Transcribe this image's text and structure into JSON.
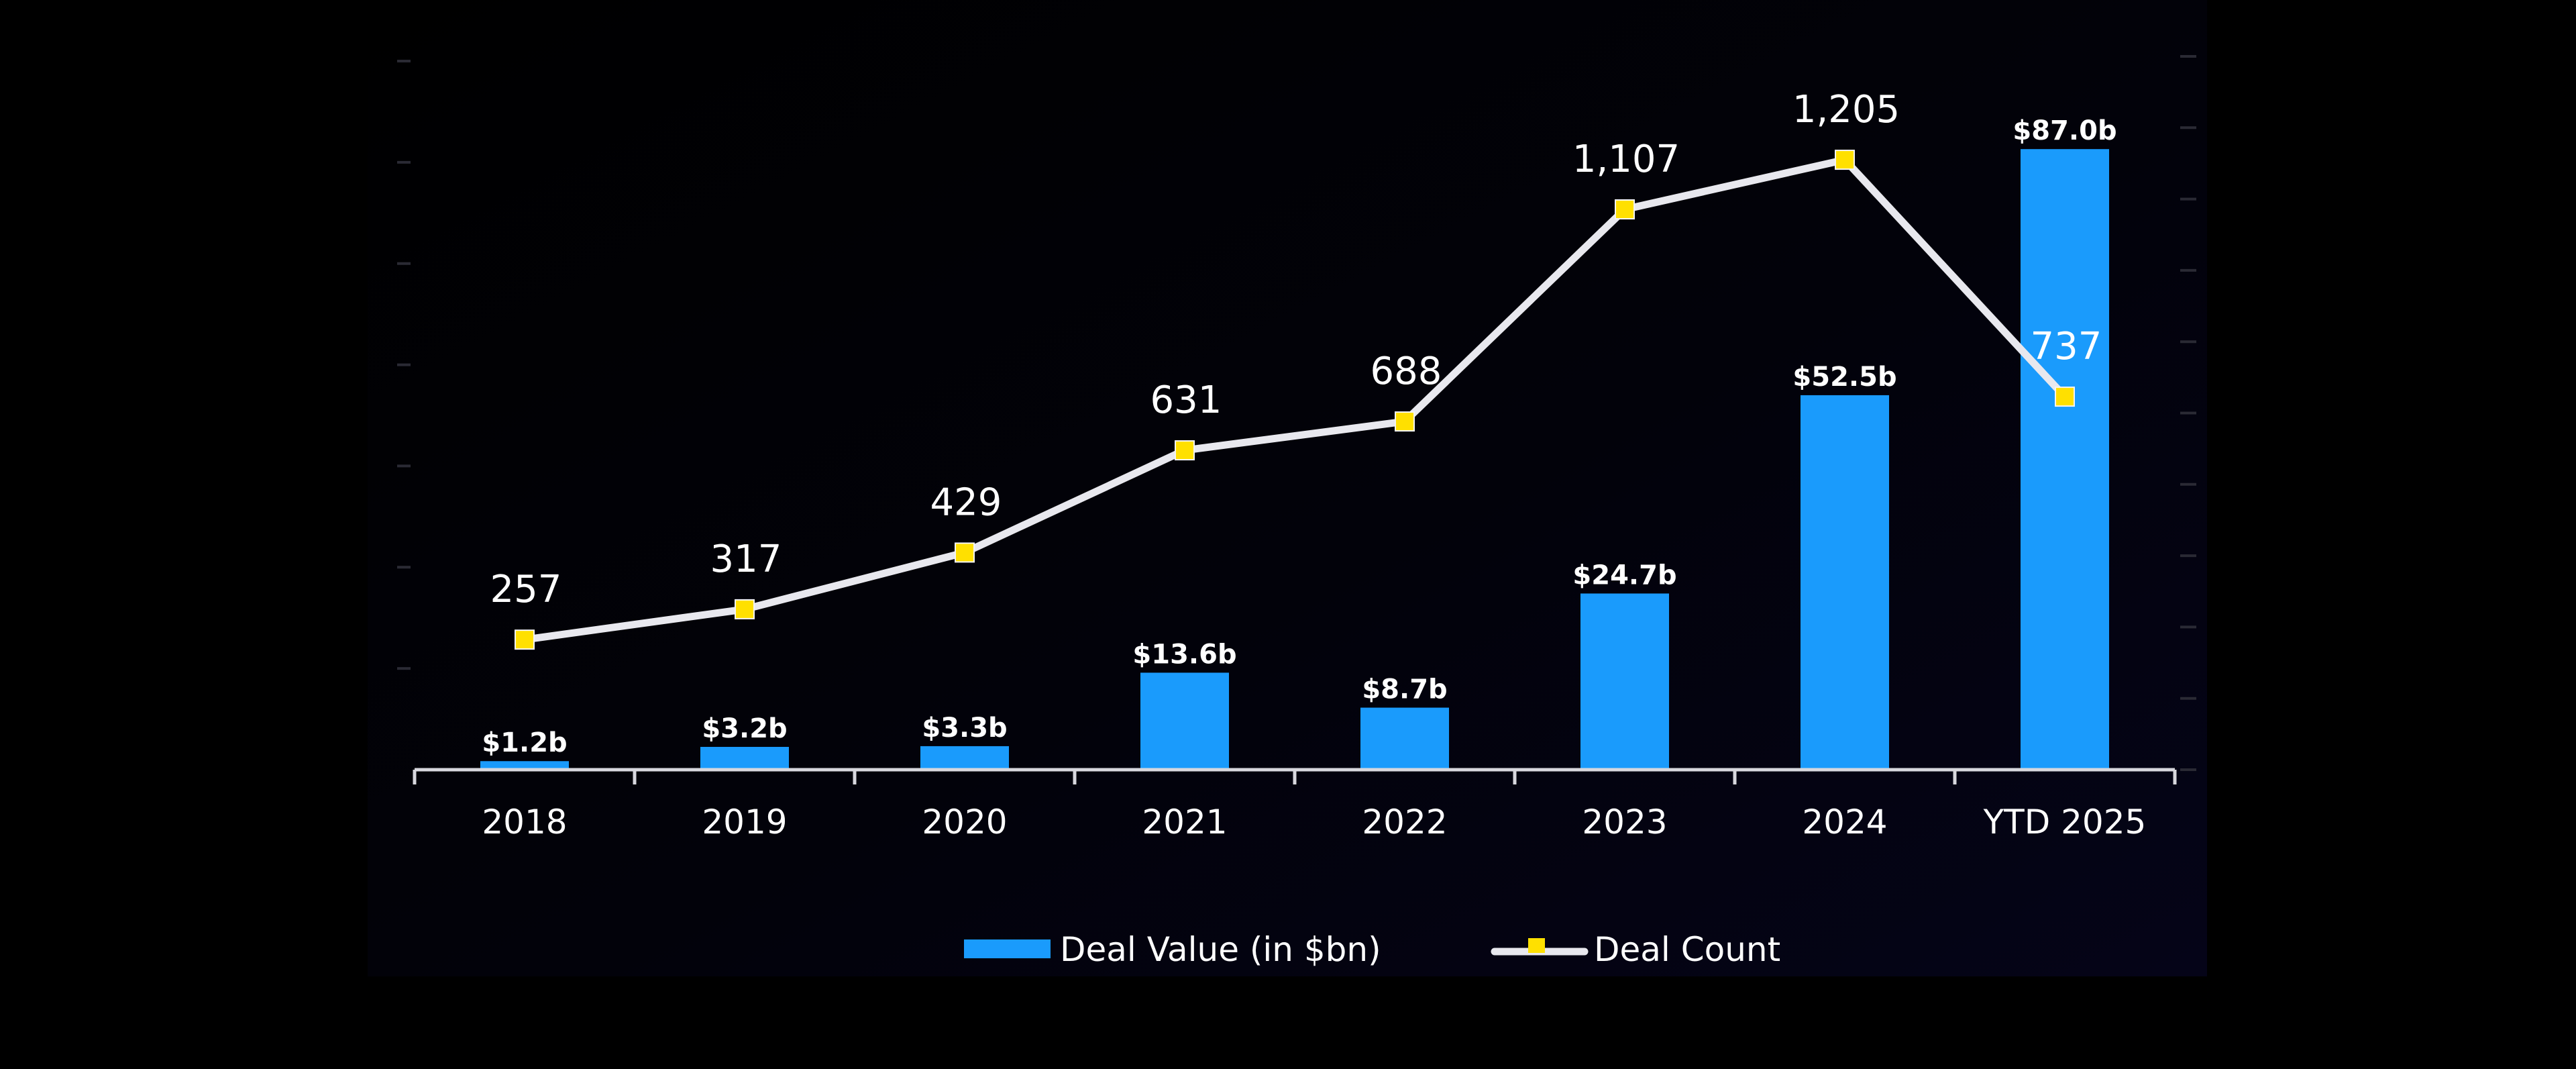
{
  "chart_data": {
    "type": "bar+line",
    "title": "",
    "xlabel": "",
    "categories": [
      "2018",
      "2019",
      "2020",
      "2021",
      "2022",
      "2023",
      "2024",
      "YTD 2025"
    ],
    "series": [
      {
        "name": "Deal Value (in $bn)",
        "type": "bar",
        "axis": "right",
        "values": [
          1.2,
          3.2,
          3.3,
          13.6,
          8.7,
          24.7,
          52.5,
          87.0
        ],
        "labels": [
          "$1.2b",
          "$3.2b",
          "$3.3b",
          "$13.6b",
          "$8.7b",
          "$24.7b",
          "$52.5b",
          "$87.0b"
        ],
        "color": "#1a9bfc"
      },
      {
        "name": "Deal Count",
        "type": "line",
        "axis": "left",
        "values": [
          257,
          317,
          429,
          631,
          688,
          1107,
          1205,
          737
        ],
        "labels": [
          "257",
          "317",
          "429",
          "631",
          "688",
          "1,107",
          "1,205",
          "737"
        ],
        "color": "#e8e8ee",
        "marker_color": "#ffe000"
      }
    ],
    "y_left": {
      "range": [
        0,
        1400
      ],
      "tick_step": 200,
      "tick_labels_shown": false
    },
    "y_right": {
      "range": [
        0,
        100
      ],
      "tick_step": 10,
      "tick_labels_shown": false
    },
    "grid": false,
    "legend": {
      "placement": "bottom-center",
      "entries": [
        "Deal Value (in $bn)",
        "Deal Count"
      ]
    }
  },
  "colors": {
    "page_background": "#000000",
    "panel_background": "#03030d",
    "axis": "#d8d8de",
    "faint_tick": "#2a2a34"
  }
}
